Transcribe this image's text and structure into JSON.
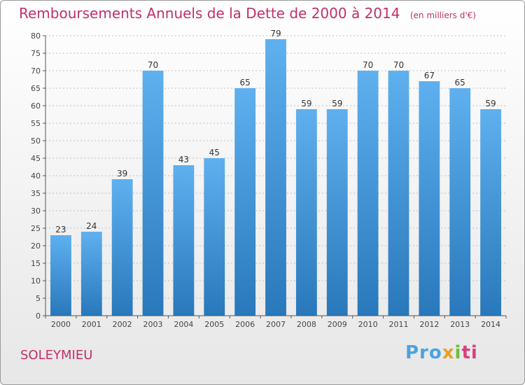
{
  "header": {
    "title": "Remboursements Annuels de la Dette de 2000 à 2014",
    "unit": "(en milliers d'€)"
  },
  "footer": {
    "commune": "SOLEYMIEU",
    "logo": [
      "Pro",
      "x",
      "i",
      "ti"
    ]
  },
  "colors": {
    "bar_top": "#5fb0ef",
    "bar_bottom": "#2878bb",
    "title": "#c0306a",
    "axis": "#555555",
    "grid": "#bdbdbd"
  },
  "chart_data": {
    "type": "bar",
    "categories": [
      "2000",
      "2001",
      "2002",
      "2003",
      "2004",
      "2005",
      "2006",
      "2007",
      "2008",
      "2009",
      "2010",
      "2011",
      "2012",
      "2013",
      "2014"
    ],
    "values": [
      23,
      24,
      39,
      70,
      43,
      45,
      65,
      79,
      59,
      59,
      70,
      70,
      67,
      65,
      59
    ],
    "title": "Remboursements Annuels de la Dette de 2000 à 2014",
    "ylim": [
      0,
      80
    ],
    "ytick_step": 5,
    "grid": true,
    "data_labels": true
  }
}
